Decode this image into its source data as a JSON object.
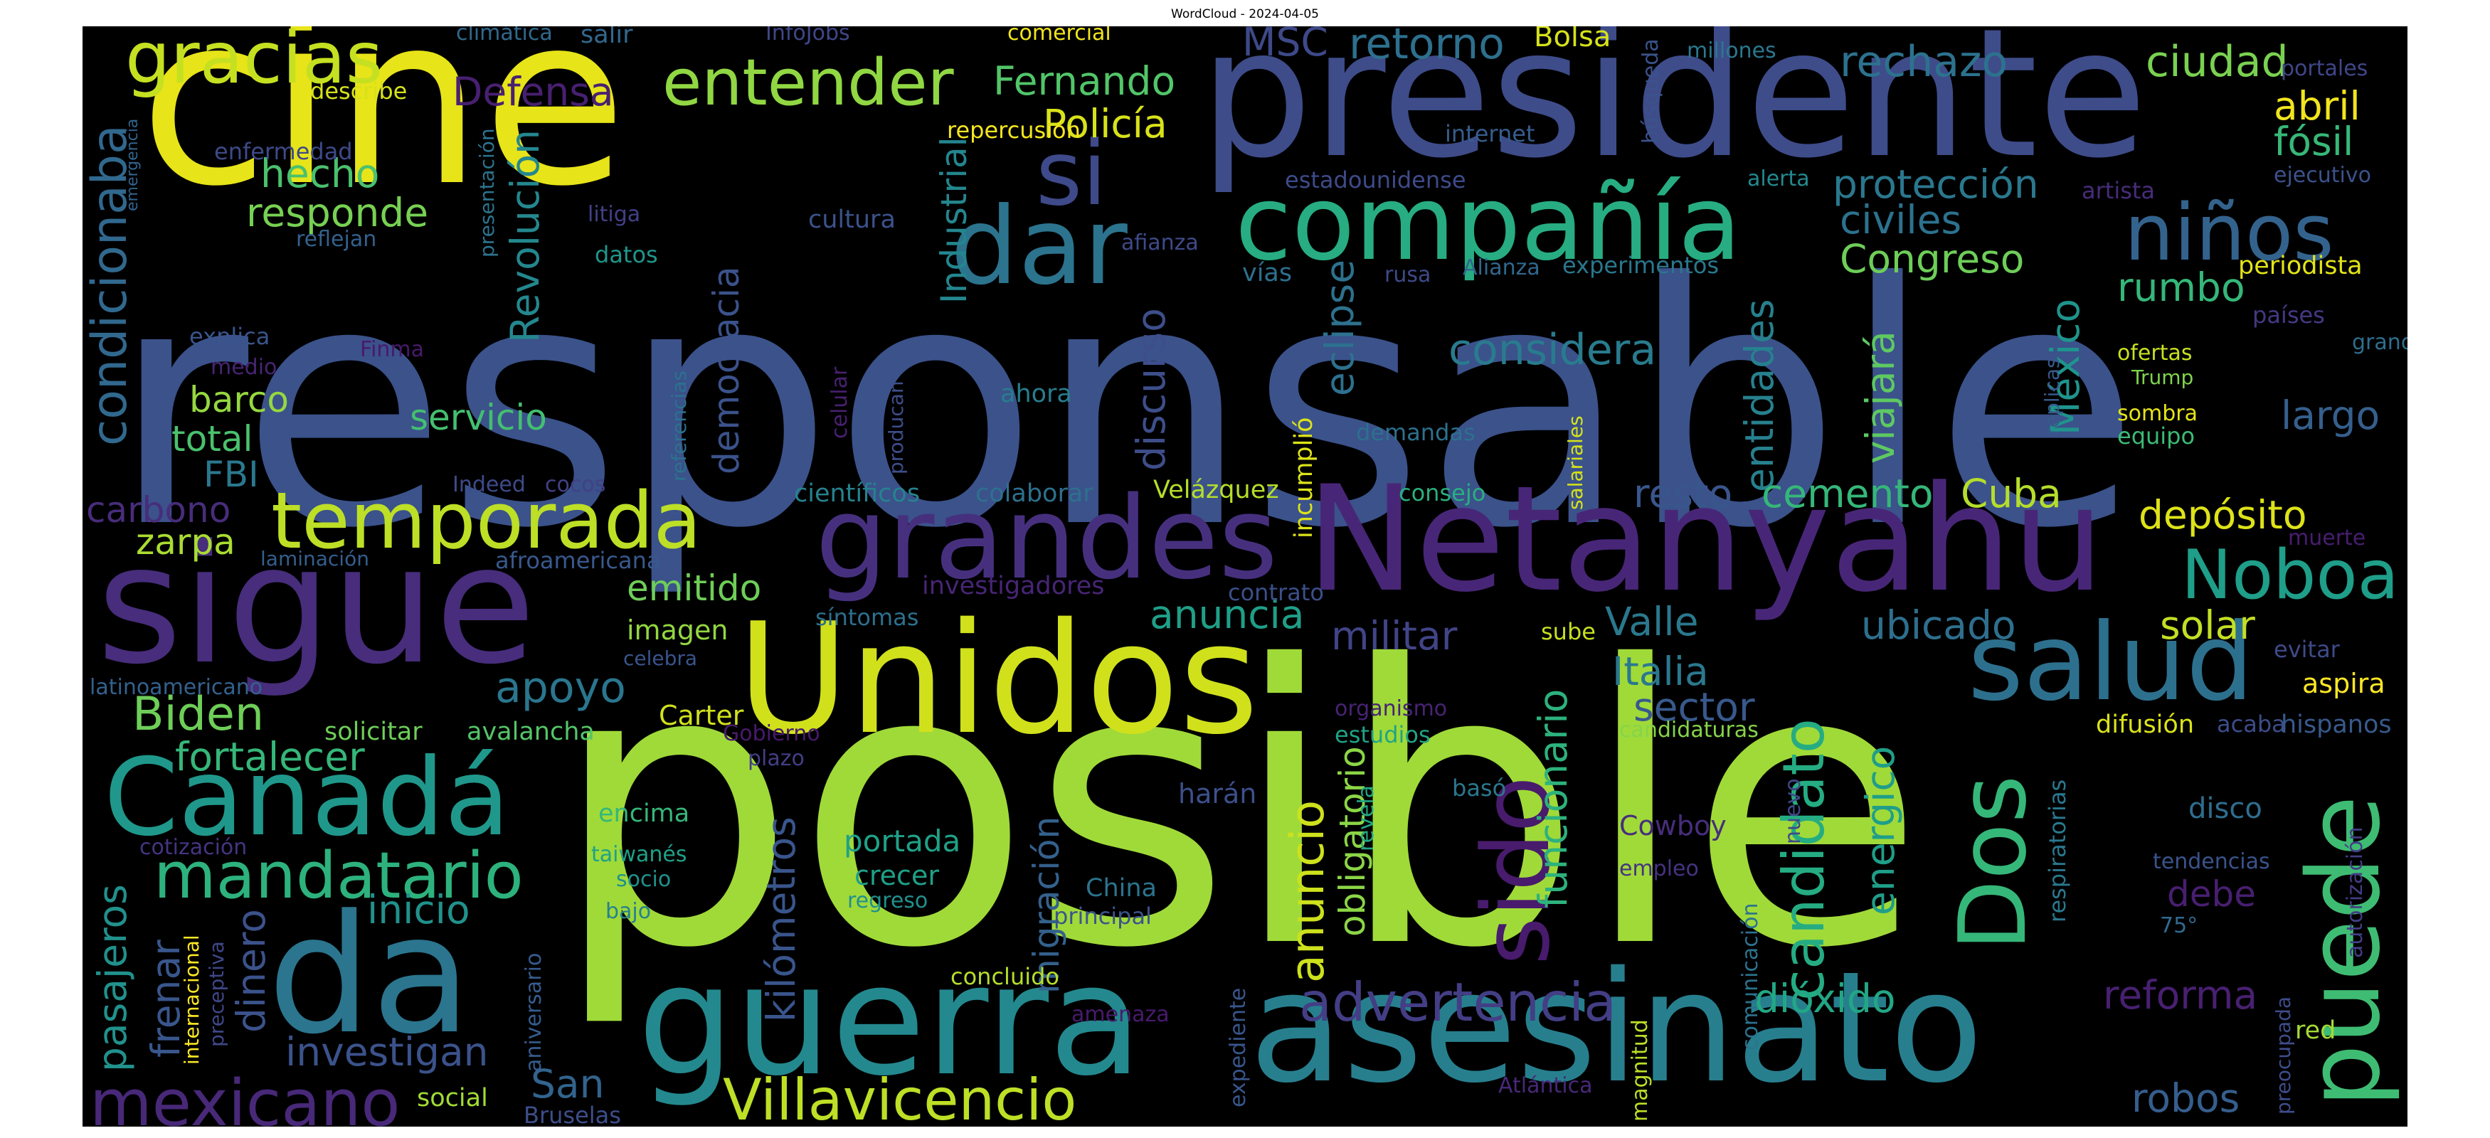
{
  "title": "WordCloud - 2024-04-05",
  "colors": {
    "background": "#000000",
    "page": "#ffffff",
    "title": "#000000"
  },
  "words": [
    {
      "text": "responsable",
      "color": "#3b528b"
    },
    {
      "text": "posible",
      "color": "#a0da39"
    },
    {
      "text": "cine",
      "color": "#e7e419"
    },
    {
      "text": "presidente",
      "color": "#3e4c8a"
    },
    {
      "text": "Netanyahu",
      "color": "#482677"
    },
    {
      "text": "sigue",
      "color": "#472d7b"
    },
    {
      "text": "Unidos",
      "color": "#d0e11c"
    },
    {
      "text": "asesinato",
      "color": "#277f8e"
    },
    {
      "text": "guerra",
      "color": "#23898e"
    },
    {
      "text": "da",
      "color": "#2b758e"
    },
    {
      "text": "grandes",
      "color": "#46307e"
    },
    {
      "text": "compañía",
      "color": "#27ad81"
    },
    {
      "text": "Canadá",
      "color": "#1f988b"
    },
    {
      "text": "temporada",
      "color": "#bddf26"
    },
    {
      "text": "dar",
      "color": "#2c738e"
    },
    {
      "text": "si",
      "color": "#3e4a89"
    },
    {
      "text": "salud",
      "color": "#2d708e"
    },
    {
      "text": "puede",
      "color": "#3fbc73"
    },
    {
      "text": "sido",
      "color": "#481b6d"
    },
    {
      "text": "Dos",
      "color": "#35b779"
    },
    {
      "text": "niños",
      "color": "#33638d"
    },
    {
      "text": "gracias",
      "color": "#c5e021"
    },
    {
      "text": "entender",
      "color": "#90d743"
    },
    {
      "text": "mandatario",
      "color": "#2db27d"
    },
    {
      "text": "Villavicencio",
      "color": "#bddf26"
    },
    {
      "text": "mexicano",
      "color": "#482878"
    },
    {
      "text": "Noboa",
      "color": "#1f9e89"
    },
    {
      "text": "candidato",
      "color": "#25ac82"
    },
    {
      "text": "advertencia",
      "color": "#433e85"
    },
    {
      "text": "considera",
      "color": "#297b8e"
    },
    {
      "text": "condicionaba",
      "color": "#31688e"
    },
    {
      "text": "Policía",
      "color": "#d8e219"
    },
    {
      "text": "Fernando",
      "color": "#52c569"
    },
    {
      "text": "rechazo",
      "color": "#2c728e"
    },
    {
      "text": "ciudad",
      "color": "#7ad151"
    },
    {
      "text": "protección",
      "color": "#2a788e"
    },
    {
      "text": "Defensa",
      "color": "#482071"
    },
    {
      "text": "responde",
      "color": "#77d153"
    },
    {
      "text": "hecho",
      "color": "#4ac16d"
    },
    {
      "text": "MSC",
      "color": "#3e4989"
    },
    {
      "text": "retorno",
      "color": "#2d708e"
    },
    {
      "text": "Bolsa",
      "color": "#d5e21a"
    },
    {
      "text": "abril",
      "color": "#f1e51d"
    },
    {
      "text": "fósil",
      "color": "#37b878"
    },
    {
      "text": "Industrial",
      "color": "#24868e"
    },
    {
      "text": "Revolución",
      "color": "#24878e"
    },
    {
      "text": "Congreso",
      "color": "#6ece58"
    },
    {
      "text": "civiles",
      "color": "#2c728e"
    },
    {
      "text": "rumbo",
      "color": "#35b779"
    },
    {
      "text": "periodista",
      "color": "#e2e418"
    },
    {
      "text": "viajará",
      "color": "#5ec962"
    },
    {
      "text": "México",
      "color": "#1f948c"
    },
    {
      "text": "democracia",
      "color": "#3b528b"
    },
    {
      "text": "discurso",
      "color": "#3d4e8a"
    },
    {
      "text": "eclipse",
      "color": "#2d718e"
    },
    {
      "text": "entidades",
      "color": "#27808e"
    },
    {
      "text": "servicio",
      "color": "#44bf70"
    },
    {
      "text": "barco",
      "color": "#95d840"
    },
    {
      "text": "total",
      "color": "#4ac16d"
    },
    {
      "text": "FBI",
      "color": "#2a788e"
    },
    {
      "text": "largo",
      "color": "#355f8d"
    },
    {
      "text": "carbono",
      "color": "#472d7b"
    },
    {
      "text": "zarpa",
      "color": "#aadc32"
    },
    {
      "text": "resto",
      "color": "#39568c"
    },
    {
      "text": "cemento",
      "color": "#35b779"
    },
    {
      "text": "Cuba",
      "color": "#b5de2b"
    },
    {
      "text": "depósito",
      "color": "#dde318"
    },
    {
      "text": "emitido",
      "color": "#6ece58"
    },
    {
      "text": "anuncia",
      "color": "#1f9f88"
    },
    {
      "text": "militar",
      "color": "#414487"
    },
    {
      "text": "Valle",
      "color": "#2a788e"
    },
    {
      "text": "ubicado",
      "color": "#2e6f8e"
    },
    {
      "text": "solar",
      "color": "#c2df23"
    },
    {
      "text": "apoyo",
      "color": "#2a768e"
    },
    {
      "text": "Biden",
      "color": "#6ece58"
    },
    {
      "text": "fortalecer",
      "color": "#35b779"
    },
    {
      "text": "Italia",
      "color": "#2a788e"
    },
    {
      "text": "sector",
      "color": "#38598c"
    },
    {
      "text": "anuncio",
      "color": "#cde11d"
    },
    {
      "text": "obligatorio",
      "color": "#8bd646"
    },
    {
      "text": "funcionario",
      "color": "#2db27d"
    },
    {
      "text": "energico",
      "color": "#1f9e89"
    },
    {
      "text": "inicio",
      "color": "#21918c"
    },
    {
      "text": "dinero",
      "color": "#3b528b"
    },
    {
      "text": "frenar",
      "color": "#39568c"
    },
    {
      "text": "pasajeros",
      "color": "#21918c"
    },
    {
      "text": "investigan",
      "color": "#3b528b"
    },
    {
      "text": "San",
      "color": "#32648e"
    },
    {
      "text": "kilómetros",
      "color": "#39558c"
    },
    {
      "text": "migración",
      "color": "#34618d"
    },
    {
      "text": "dióxido",
      "color": "#22a785"
    },
    {
      "text": "reforma",
      "color": "#482071"
    },
    {
      "text": "robos",
      "color": "#355e8d"
    },
    {
      "text": "aspira",
      "color": "#fde725"
    },
    {
      "text": "hispanos",
      "color": "#38598c"
    },
    {
      "text": "difusión",
      "color": "#dae319"
    },
    {
      "text": "disco",
      "color": "#2e6e8e"
    },
    {
      "text": "debe",
      "color": "#481f70"
    },
    {
      "text": "red",
      "color": "#a2da37"
    },
    {
      "text": "Cowboy",
      "color": "#472e7c"
    },
    {
      "text": "empleo",
      "color": "#46337f"
    },
    {
      "text": "portada",
      "color": "#1fa187"
    },
    {
      "text": "crecer",
      "color": "#1fa088"
    },
    {
      "text": "regreso",
      "color": "#21908d"
    },
    {
      "text": "China",
      "color": "#2b748e"
    },
    {
      "text": "principal",
      "color": "#3a548c"
    },
    {
      "text": "harán",
      "color": "#3c508b"
    },
    {
      "text": "encima",
      "color": "#35b779"
    },
    {
      "text": "taiwanés",
      "color": "#1fa188"
    },
    {
      "text": "socio",
      "color": "#20928c"
    },
    {
      "text": "bajo",
      "color": "#26818e"
    },
    {
      "text": "imagen",
      "color": "#93d741"
    },
    {
      "text": "solicitar",
      "color": "#6ece58"
    },
    {
      "text": "avalancha",
      "color": "#54c568"
    },
    {
      "text": "Carter",
      "color": "#d0e11c"
    },
    {
      "text": "Gobierno",
      "color": "#481a6c"
    },
    {
      "text": "plazo",
      "color": "#433e85"
    },
    {
      "text": "estudios",
      "color": "#20a386"
    },
    {
      "text": "organismo",
      "color": "#482374"
    },
    {
      "text": "candidaturas",
      "color": "#86d549"
    },
    {
      "text": "sube",
      "color": "#c5e021"
    },
    {
      "text": "basó",
      "color": "#2a788e"
    },
    {
      "text": "revela",
      "color": "#22a785"
    },
    {
      "text": "evitar",
      "color": "#3e4a89"
    },
    {
      "text": "acaba",
      "color": "#3d4d8a"
    },
    {
      "text": "tendencias",
      "color": "#3a538b"
    },
    {
      "text": "75°",
      "color": "#30698e"
    },
    {
      "text": "nuevo",
      "color": "#3f4889"
    },
    {
      "text": "respiratorias",
      "color": "#2a788e"
    },
    {
      "text": "comunicación",
      "color": "#2c738e"
    },
    {
      "text": "magnitud",
      "color": "#bade28"
    },
    {
      "text": "Atlántica",
      "color": "#482878"
    },
    {
      "text": "expediente",
      "color": "#39568c"
    },
    {
      "text": "amenaza",
      "color": "#481a6c"
    },
    {
      "text": "concluido",
      "color": "#b5de2b"
    },
    {
      "text": "social",
      "color": "#a2da37"
    },
    {
      "text": "Bruselas",
      "color": "#3d4e8a"
    },
    {
      "text": "aniversario",
      "color": "#365c8d"
    },
    {
      "text": "internacional",
      "color": "#fde725"
    },
    {
      "text": "preceptiva",
      "color": "#3f4788"
    },
    {
      "text": "cotización",
      "color": "#453581"
    },
    {
      "text": "latinoamericano",
      "color": "#34618d"
    },
    {
      "text": "celebra",
      "color": "#3a548c"
    },
    {
      "text": "síntomas",
      "color": "#2e6f8e"
    },
    {
      "text": "investigadores",
      "color": "#482576"
    },
    {
      "text": "contrato",
      "color": "#3c4f8a"
    },
    {
      "text": "laminación",
      "color": "#355e8d"
    },
    {
      "text": "afroamericana",
      "color": "#38598c"
    },
    {
      "text": "Indeed",
      "color": "#3e4a89"
    },
    {
      "text": "cocos",
      "color": "#424086"
    },
    {
      "text": "científicos",
      "color": "#26828e"
    },
    {
      "text": "colaborar",
      "color": "#2d708e"
    },
    {
      "text": "Velázquez",
      "color": "#b5de2b"
    },
    {
      "text": "consejo",
      "color": "#29af7f"
    },
    {
      "text": "muerte",
      "color": "#481d6f"
    },
    {
      "text": "incumplió",
      "color": "#dde318"
    },
    {
      "text": "demandas",
      "color": "#2d708e"
    },
    {
      "text": "ahora",
      "color": "#287d8e"
    },
    {
      "text": "celular",
      "color": "#482071"
    },
    {
      "text": "producan",
      "color": "#3d4e8a"
    },
    {
      "text": "referencias",
      "color": "#2c718e"
    },
    {
      "text": "explica",
      "color": "#3a548c"
    },
    {
      "text": "medio",
      "color": "#482475"
    },
    {
      "text": "Finma",
      "color": "#481a6c"
    },
    {
      "text": "salariales",
      "color": "#d5e21a"
    },
    {
      "text": "réplicas",
      "color": "#38598c"
    },
    {
      "text": "ofertas",
      "color": "#c8e020"
    },
    {
      "text": "Trump",
      "color": "#7fd34e"
    },
    {
      "text": "sombra",
      "color": "#e5e419"
    },
    {
      "text": "equipo",
      "color": "#3bbb75"
    },
    {
      "text": "países",
      "color": "#453882"
    },
    {
      "text": "grano",
      "color": "#2e6e8e"
    },
    {
      "text": "rusa",
      "color": "#3e4a89"
    },
    {
      "text": "Alianza",
      "color": "#31688e"
    },
    {
      "text": "experimentos",
      "color": "#2a778e"
    },
    {
      "text": "vías",
      "color": "#2d708e"
    },
    {
      "text": "afianza",
      "color": "#3e4a89"
    },
    {
      "text": "cultura",
      "color": "#3b528b"
    },
    {
      "text": "datos",
      "color": "#1f968b"
    },
    {
      "text": "litiga",
      "color": "#424086"
    },
    {
      "text": "reflejan",
      "color": "#34618d"
    },
    {
      "text": "enfermedad",
      "color": "#3e4a89"
    },
    {
      "text": "emergencia",
      "color": "#33638d"
    },
    {
      "text": "presentación",
      "color": "#2c738e"
    },
    {
      "text": "describe",
      "color": "#d5e21a"
    },
    {
      "text": "climática",
      "color": "#30698e"
    },
    {
      "text": "salir",
      "color": "#31688e"
    },
    {
      "text": "InfoJobs",
      "color": "#3f4788"
    },
    {
      "text": "comercial",
      "color": "#f1e51d"
    },
    {
      "text": "repercusión",
      "color": "#f4e61e"
    },
    {
      "text": "internet",
      "color": "#365d8d"
    },
    {
      "text": "estadounidense",
      "color": "#3e4a89"
    },
    {
      "text": "alerta",
      "color": "#23898e"
    },
    {
      "text": "artista",
      "color": "#472c7a"
    },
    {
      "text": "búsqueda",
      "color": "#3b528b"
    },
    {
      "text": "millones",
      "color": "#2a788e"
    },
    {
      "text": "portales",
      "color": "#404688"
    },
    {
      "text": "ejecutivo",
      "color": "#3b528b"
    },
    {
      "text": "autorización",
      "color": "#433e85"
    },
    {
      "text": "preocupada",
      "color": "#3e4c8a"
    }
  ]
}
